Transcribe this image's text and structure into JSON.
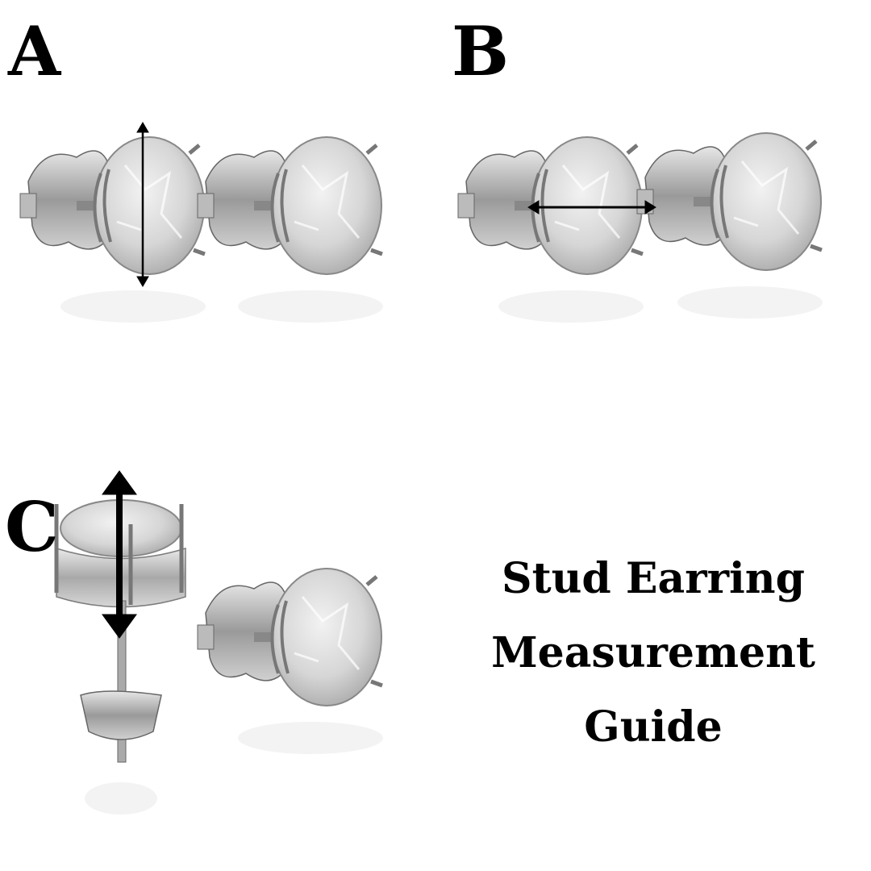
{
  "labels": {
    "a": "A",
    "b": "B",
    "c": "C"
  },
  "title": {
    "line1": "Stud Earring",
    "line2": "Measurement",
    "line3": "Guide"
  },
  "colors": {
    "text": "#000000",
    "metal": "#b8b8b8",
    "gem": "#dcdcdc",
    "arrow": "#000000"
  }
}
